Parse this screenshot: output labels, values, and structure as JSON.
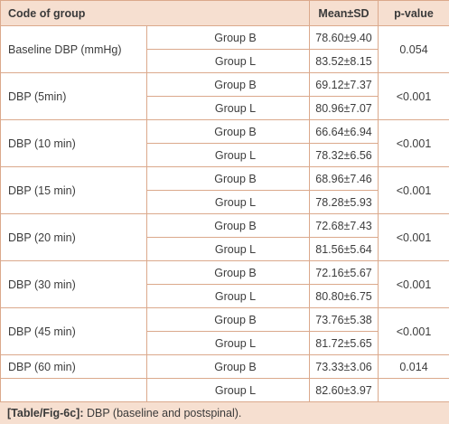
{
  "table": {
    "headers": {
      "code": "Code of group",
      "mean": "Mean±SD",
      "p": "p-value"
    },
    "rows": [
      {
        "label": "Baseline DBP (mmHg)",
        "groupB": "Group B",
        "meanB": "78.60±9.40",
        "groupL": "Group L",
        "meanL": "83.52±8.15",
        "p": "0.054"
      },
      {
        "label": "DBP (5min)",
        "groupB": "Group B",
        "meanB": "69.12±7.37",
        "groupL": "Group L",
        "meanL": "80.96±7.07",
        "p": "<0.001"
      },
      {
        "label": "DBP (10 min)",
        "groupB": "Group B",
        "meanB": "66.64±6.94",
        "groupL": "Group L",
        "meanL": "78.32±6.56",
        "p": "<0.001"
      },
      {
        "label": "DBP (15 min)",
        "groupB": "Group B",
        "meanB": "68.96±7.46",
        "groupL": "Group L",
        "meanL": "78.28±5.93",
        "p": "<0.001"
      },
      {
        "label": "DBP (20 min)",
        "groupB": "Group B",
        "meanB": "72.68±7.43",
        "groupL": "Group L",
        "meanL": "81.56±5.64",
        "p": "<0.001"
      },
      {
        "label": "DBP (30 min)",
        "groupB": "Group B",
        "meanB": "72.16±5.67",
        "groupL": "Group L",
        "meanL": "80.80±6.75",
        "p": "<0.001"
      },
      {
        "label": "DBP (45 min)",
        "groupB": "Group B",
        "meanB": "73.76±5.38",
        "groupL": "Group L",
        "meanL": "81.72±5.65",
        "p": "<0.001"
      },
      {
        "label": "DBP (60 min)",
        "groupB": "Group B",
        "meanB": "73.33±3.06",
        "groupL": "Group L",
        "meanL": "82.60±3.97",
        "p": "0.014"
      }
    ]
  },
  "caption": {
    "ref": "[Table/Fig-6c]:",
    "text": " DBP (baseline and postspinal)."
  },
  "colors": {
    "header_bg": "#f6dfd0",
    "border": "#dba98c",
    "text": "#3c3c3c"
  }
}
